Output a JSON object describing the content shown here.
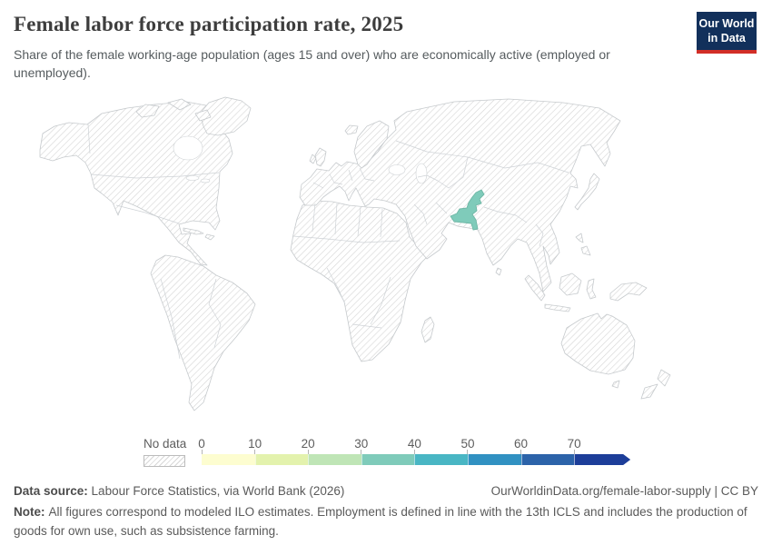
{
  "header": {
    "title": "Female labor force participation rate, 2025",
    "subtitle": "Share of the female working-age population (ages 15 and over) who are economically active (employed or unemployed).",
    "logo": {
      "line1": "Our World",
      "line2": "in Data",
      "bg": "#12305b",
      "accent": "#d22e27"
    }
  },
  "map": {
    "highlighted_country": {
      "name": "Pakistan",
      "color": "#7fcbba",
      "stroke": "#6fb7a5",
      "bin": "30-40"
    },
    "no_data_style": "diagonal-hatch"
  },
  "legend": {
    "no_data_label": "No data",
    "ticks": [
      "0",
      "10",
      "20",
      "30",
      "40",
      "50",
      "60",
      "70"
    ],
    "bins": [
      {
        "min": "0",
        "color": "#fdfdd0"
      },
      {
        "min": "10",
        "color": "#e3f2ad"
      },
      {
        "min": "20",
        "color": "#bfe5b6"
      },
      {
        "min": "30",
        "color": "#7fcbba"
      },
      {
        "min": "40",
        "color": "#49b6c4"
      },
      {
        "min": "50",
        "color": "#3191c2"
      },
      {
        "min": "60",
        "color": "#2c63a9"
      },
      {
        "min": "70",
        "color": "#1d3e99",
        "open_ended": true
      }
    ]
  },
  "footer": {
    "data_source_label": "Data source:",
    "data_source": "Labour Force Statistics, via World Bank (2026)",
    "link": "OurWorldinData.org/female-labor-supply",
    "license_suffix": " | CC BY",
    "note_label": "Note:",
    "note": "All figures correspond to modeled ILO estimates. Employment is defined in line with the 13th ICLS and includes the production of goods for own use, such as subsistence farming."
  },
  "chart_data": {
    "type": "choropleth_map",
    "title": "Female labor force participation rate, 2025",
    "unit": "%",
    "legend_bins": [
      0,
      10,
      20,
      30,
      40,
      50,
      60,
      70
    ],
    "legend_open_ended_top": true,
    "series": [
      {
        "country": "Pakistan",
        "value_bin": "30-40",
        "color": "#7fcbba"
      }
    ],
    "no_data_note": "All other countries are shown with a hatched 'No data' pattern",
    "legend_position": "bottom"
  }
}
